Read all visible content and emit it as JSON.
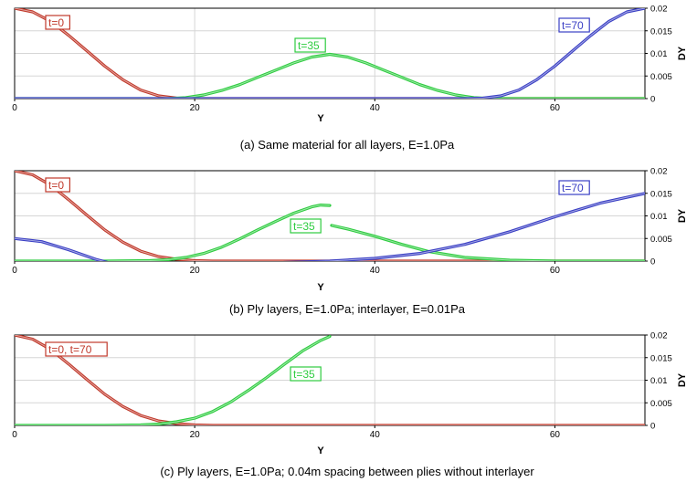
{
  "chart_data": [
    {
      "type": "line",
      "caption": "(a)  Same material for all layers,  E=1.0Pa",
      "xlabel": "Y",
      "ylabel": "DY",
      "xlim": [
        0,
        70
      ],
      "ylim": [
        0,
        0.02
      ],
      "x_ticks": [
        "0",
        "20",
        "40",
        "60"
      ],
      "y_ticks": [
        "0",
        "0.005",
        "0.01",
        "0.015",
        "0.02"
      ],
      "grid": true,
      "series": [
        {
          "name": "t=0",
          "color": "#c0392b",
          "x": [
            0,
            2,
            4,
            6,
            8,
            10,
            12,
            14,
            16,
            18,
            20,
            30,
            40,
            50,
            60,
            70
          ],
          "y": [
            0.02,
            0.0192,
            0.0171,
            0.014,
            0.0106,
            0.0072,
            0.0042,
            0.0019,
            0.0006,
            0.0001,
            0.0,
            0.0,
            0.0,
            0.0,
            0.0,
            0.0
          ]
        },
        {
          "name": "t=35",
          "color": "#2ecc40",
          "x": [
            0,
            10,
            17,
            19,
            21,
            23,
            25,
            27,
            29,
            31,
            33,
            35,
            37,
            39,
            41,
            43,
            45,
            47,
            49,
            51,
            53,
            60,
            70
          ],
          "y": [
            0.0,
            0.0,
            0.0,
            0.0002,
            0.0008,
            0.0018,
            0.0031,
            0.0047,
            0.0063,
            0.0079,
            0.0092,
            0.0098,
            0.0092,
            0.0079,
            0.0063,
            0.0047,
            0.0031,
            0.0018,
            0.0008,
            0.0002,
            0.0,
            0.0,
            0.0
          ]
        },
        {
          "name": "t=70",
          "color": "#3a3fc4",
          "x": [
            0,
            10,
            20,
            30,
            40,
            50,
            52,
            54,
            56,
            58,
            60,
            62,
            64,
            66,
            68,
            70
          ],
          "y": [
            0.0,
            0.0,
            0.0,
            0.0,
            0.0,
            0.0,
            0.0001,
            0.0006,
            0.0019,
            0.0042,
            0.0072,
            0.0106,
            0.014,
            0.0171,
            0.0192,
            0.02
          ]
        }
      ],
      "annotations": [
        {
          "text": "t=0",
          "series": 0
        },
        {
          "text": "t=35",
          "series": 1
        },
        {
          "text": "t=70",
          "series": 2
        }
      ]
    },
    {
      "type": "line",
      "caption": "(b)  Ply layers,  E=1.0Pa;  interlayer,  E=0.01Pa",
      "xlabel": "Y",
      "ylabel": "DY",
      "xlim": [
        0,
        70
      ],
      "ylim": [
        0,
        0.02
      ],
      "x_ticks": [
        "0",
        "20",
        "40",
        "60"
      ],
      "y_ticks": [
        "0",
        "0.005",
        "0.01",
        "0.015",
        "0.02"
      ],
      "grid": true,
      "series": [
        {
          "name": "t=0",
          "color": "#c0392b",
          "x": [
            0,
            2,
            4,
            6,
            8,
            10,
            12,
            14,
            16,
            18,
            20,
            22,
            30,
            40,
            50,
            60,
            70
          ],
          "y": [
            0.02,
            0.0191,
            0.0168,
            0.0136,
            0.0102,
            0.0069,
            0.0042,
            0.0022,
            0.001,
            0.0004,
            0.0001,
            0.0,
            0.0,
            0.0,
            0.0,
            0.0,
            0.0
          ]
        },
        {
          "name": "t=35",
          "color": "#2ecc40",
          "x": [
            0,
            10,
            15,
            17,
            19,
            21,
            23,
            25,
            27,
            29,
            31,
            33,
            34,
            35,
            35.2,
            37,
            40,
            43,
            46,
            50,
            55,
            60,
            70
          ],
          "y": [
            0.0,
            0.0,
            0.0001,
            0.0003,
            0.0008,
            0.0017,
            0.0031,
            0.0049,
            0.0069,
            0.0088,
            0.0106,
            0.012,
            0.0124,
            0.0123,
            0.0079,
            0.0071,
            0.0055,
            0.0037,
            0.0021,
            0.0008,
            0.0002,
            0.0,
            0.0
          ]
        },
        {
          "name": "t=70",
          "color": "#3a3fc4",
          "x": [
            0,
            3,
            6,
            9,
            12,
            15,
            18,
            21,
            25,
            30,
            35,
            40,
            45,
            50,
            55,
            60,
            65,
            70
          ],
          "y": [
            0.005,
            0.0043,
            0.0025,
            0.0004,
            -0.0012,
            -0.0018,
            -0.0017,
            -0.0013,
            -0.0008,
            -0.0003,
            0.0,
            0.0006,
            0.0017,
            0.0037,
            0.0065,
            0.0098,
            0.0128,
            0.015
          ]
        }
      ],
      "annotations": [
        {
          "text": "t=0",
          "series": 0
        },
        {
          "text": "t=35",
          "series": 1
        },
        {
          "text": "t=70",
          "series": 2
        }
      ]
    },
    {
      "type": "line",
      "caption": "(c)  Ply layers,  E=1.0Pa;  0.04m spacing between plies without interlayer",
      "xlabel": "Y",
      "ylabel": "DY",
      "xlim": [
        0,
        70
      ],
      "ylim": [
        0,
        0.02
      ],
      "x_ticks": [
        "0",
        "20",
        "40",
        "60"
      ],
      "y_ticks": [
        "0",
        "0.005",
        "0.01",
        "0.015",
        "0.02"
      ],
      "grid": true,
      "series": [
        {
          "name": "t=0, t=70",
          "color": "#c0392b",
          "x": [
            0,
            2,
            4,
            6,
            8,
            10,
            12,
            14,
            16,
            18,
            20,
            22,
            30,
            40,
            50,
            60,
            70
          ],
          "y": [
            0.02,
            0.0191,
            0.0168,
            0.0136,
            0.0102,
            0.0069,
            0.0042,
            0.0022,
            0.001,
            0.0004,
            0.0001,
            0.0,
            0.0,
            0.0,
            0.0,
            0.0,
            0.0
          ]
        },
        {
          "name": "t=35",
          "color": "#2ecc40",
          "x": [
            0,
            10,
            14,
            16,
            18,
            20,
            22,
            24,
            26,
            28,
            30,
            32,
            34,
            35
          ],
          "y": [
            0.0,
            0.0,
            0.0001,
            0.0003,
            0.0008,
            0.0016,
            0.0031,
            0.0052,
            0.0078,
            0.0106,
            0.0136,
            0.0165,
            0.0188,
            0.0197
          ]
        }
      ],
      "annotations": [
        {
          "text": "t=0, t=70",
          "series": 0
        },
        {
          "text": "t=35",
          "series": 1
        }
      ]
    }
  ]
}
